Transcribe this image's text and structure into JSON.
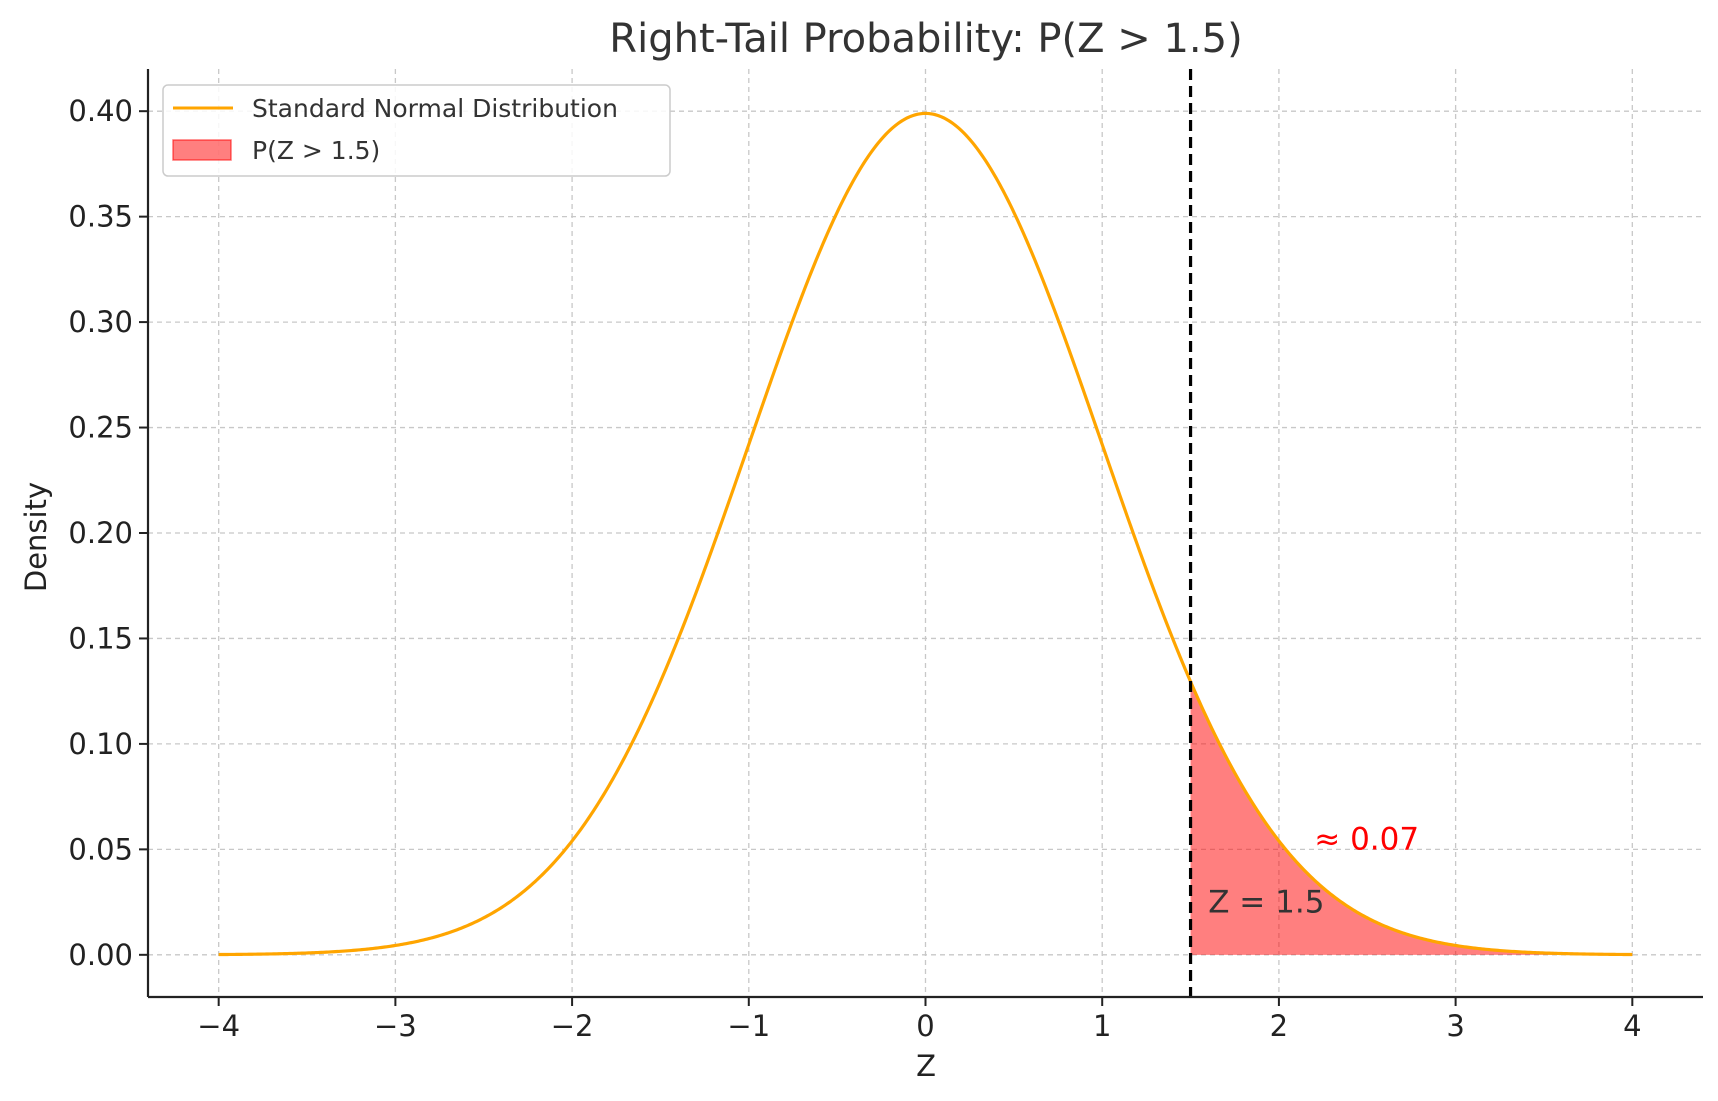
{
  "chart_data": {
    "type": "area",
    "title": "Right-Tail Probability: P(Z > 1.5)",
    "xlabel": "Z",
    "ylabel": "Density",
    "xlim": [
      -4.4,
      4.4
    ],
    "ylim": [
      -0.02,
      0.42
    ],
    "xticks": [
      -4,
      -3,
      -2,
      -1,
      0,
      1,
      2,
      3,
      4
    ],
    "xtick_labels": [
      "−4",
      "−3",
      "−2",
      "−1",
      "0",
      "1",
      "2",
      "3",
      "4"
    ],
    "yticks": [
      0.0,
      0.05,
      0.1,
      0.15,
      0.2,
      0.25,
      0.3,
      0.35,
      0.4
    ],
    "ytick_labels": [
      "0.00",
      "0.05",
      "0.10",
      "0.15",
      "0.20",
      "0.25",
      "0.30",
      "0.35",
      "0.40"
    ],
    "grid": true,
    "legend_position": "top-left",
    "series": [
      {
        "name": "Standard Normal Distribution",
        "kind": "line",
        "color": "#FFA500",
        "x": [
          -4.0,
          -3.5,
          -3.0,
          -2.5,
          -2.0,
          -1.5,
          -1.0,
          -0.5,
          0.0,
          0.5,
          1.0,
          1.5,
          2.0,
          2.5,
          3.0,
          3.5,
          4.0
        ],
        "y": [
          0.0001,
          0.0009,
          0.0044,
          0.0175,
          0.054,
          0.1295,
          0.242,
          0.3521,
          0.3989,
          0.3521,
          0.242,
          0.1295,
          0.054,
          0.0175,
          0.0044,
          0.0009,
          0.0001
        ]
      },
      {
        "name": "P(Z > 1.5)",
        "kind": "area",
        "color": "#FF0000",
        "from": 1.5,
        "to": 4.0
      }
    ],
    "threshold": {
      "x": 1.5,
      "style": "dashed",
      "color": "#000000"
    },
    "annotations": [
      {
        "text": "Z = 1.5",
        "x": 1.6,
        "y": 0.02,
        "color": "#333333"
      },
      {
        "text": "≈ 0.07",
        "x": 2.2,
        "y": 0.05,
        "color": "#FF0000"
      }
    ]
  }
}
